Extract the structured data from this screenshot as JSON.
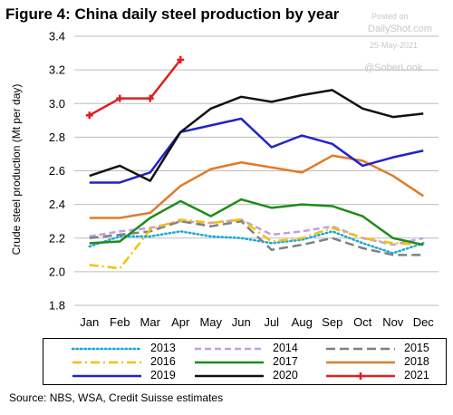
{
  "header": {
    "title": "Figure 4: China daily steel production by year",
    "watermark_posted": "Posted on",
    "watermark_site": "DailyShot.com",
    "watermark_date": "25-May-2021",
    "watermark_handle": "@SoberLook"
  },
  "footer": {
    "source": "Source: NBS, WSA, Credit Suisse estimates"
  },
  "chart_data": {
    "type": "line",
    "title": "Figure 4: China daily steel production by year",
    "ylabel": "Crude steel production (Mt per day)",
    "xlabel": "",
    "ylim": [
      1.8,
      3.4
    ],
    "yticks": [
      "1.8",
      "2.0",
      "2.2",
      "2.4",
      "2.6",
      "2.8",
      "3.0",
      "3.2",
      "3.4"
    ],
    "grid": true,
    "legend_position": "bottom",
    "categories": [
      "Jan",
      "Feb",
      "Mar",
      "Apr",
      "May",
      "Jun",
      "Jul",
      "Aug",
      "Sep",
      "Oct",
      "Nov",
      "Dec"
    ],
    "series": [
      {
        "name": "2013",
        "color": "#1aa7d8",
        "dash": "dot",
        "values": [
          2.15,
          2.21,
          2.21,
          2.24,
          2.21,
          2.2,
          2.17,
          2.19,
          2.24,
          2.17,
          2.11,
          2.17
        ]
      },
      {
        "name": "2014",
        "color": "#c49ee0",
        "dash": "dash",
        "values": [
          2.21,
          2.24,
          2.26,
          2.3,
          2.29,
          2.31,
          2.22,
          2.24,
          2.27,
          2.2,
          2.16,
          2.2
        ]
      },
      {
        "name": "2015",
        "color": "#808080",
        "dash": "longdash",
        "values": [
          2.2,
          2.22,
          2.24,
          2.3,
          2.27,
          2.3,
          2.13,
          2.16,
          2.2,
          2.14,
          2.1,
          2.1
        ]
      },
      {
        "name": "2016",
        "color": "#f2c200",
        "dash": "dashdot",
        "values": [
          2.04,
          2.02,
          2.25,
          2.31,
          2.29,
          2.31,
          2.18,
          2.2,
          2.26,
          2.2,
          2.17,
          2.16
        ]
      },
      {
        "name": "2017",
        "color": "#1e8c1e",
        "dash": "solid",
        "values": [
          2.17,
          2.18,
          2.32,
          2.42,
          2.33,
          2.43,
          2.38,
          2.4,
          2.39,
          2.33,
          2.2,
          2.16
        ]
      },
      {
        "name": "2018",
        "color": "#e07b2a",
        "dash": "solid",
        "values": [
          2.32,
          2.32,
          2.35,
          2.51,
          2.61,
          2.65,
          2.62,
          2.59,
          2.69,
          2.66,
          2.57,
          2.45
        ]
      },
      {
        "name": "2019",
        "color": "#2222cc",
        "dash": "solid",
        "values": [
          2.53,
          2.53,
          2.59,
          2.83,
          2.87,
          2.91,
          2.74,
          2.81,
          2.76,
          2.63,
          2.68,
          2.72
        ]
      },
      {
        "name": "2020",
        "color": "#111111",
        "dash": "solid",
        "values": [
          2.57,
          2.63,
          2.54,
          2.83,
          2.97,
          3.04,
          3.01,
          3.05,
          3.08,
          2.97,
          2.92,
          2.94
        ]
      },
      {
        "name": "2021",
        "color": "#e02020",
        "dash": "marker",
        "values": [
          2.93,
          3.03,
          3.03,
          3.26,
          null,
          null,
          null,
          null,
          null,
          null,
          null,
          null
        ]
      }
    ]
  }
}
